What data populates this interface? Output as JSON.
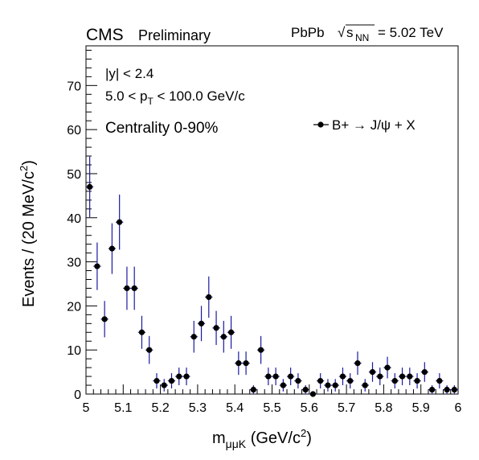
{
  "header": {
    "experiment": "CMS",
    "status": "Preliminary",
    "collision": "PbPb",
    "sqrt_symbol": "√",
    "energy_var": "s",
    "energy_sub": "NN",
    "energy_value": "= 5.02 TeV"
  },
  "annotations": {
    "rapidity_cut": "|y| < 2.4",
    "pt_cut_prefix": "5.0 < p",
    "pt_cut_sub": "T",
    "pt_cut_suffix": " < 100.0 GeV/c",
    "centrality": "Centrality 0-90%"
  },
  "legend": {
    "label": "B+ → J/ψ + X",
    "position": "top-right"
  },
  "colors": {
    "marker": "#000000",
    "error_bar": "#1a1aa0",
    "axis": "#000000"
  },
  "chart_data": {
    "type": "scatter",
    "xlabel_main": "m",
    "xlabel_sub": "μμK",
    "xlabel_unit": " (GeV/c",
    "xlabel_sup": "2",
    "xlabel_close": ")",
    "ylabel": "Events / (20 MeV/c",
    "ylabel_sup": "2",
    "ylabel_close": ")",
    "xlim": [
      5.0,
      6.0
    ],
    "ylim": [
      0,
      79
    ],
    "x_ticks": [
      5,
      5.1,
      5.2,
      5.3,
      5.4,
      5.5,
      5.6,
      5.7,
      5.8,
      5.9,
      6
    ],
    "x_tick_labels": [
      "5",
      "5.1",
      "5.2",
      "5.3",
      "5.4",
      "5.5",
      "5.6",
      "5.7",
      "5.8",
      "5.9",
      "6"
    ],
    "y_ticks": [
      0,
      10,
      20,
      30,
      40,
      50,
      60,
      70
    ],
    "y_tick_labels": [
      "0",
      "10",
      "20",
      "30",
      "40",
      "50",
      "60",
      "70"
    ],
    "grid": false,
    "series": [
      {
        "name": "B+ → J/ψ + X",
        "x": [
          5.01,
          5.03,
          5.05,
          5.07,
          5.09,
          5.11,
          5.13,
          5.15,
          5.17,
          5.19,
          5.21,
          5.23,
          5.25,
          5.27,
          5.29,
          5.31,
          5.33,
          5.35,
          5.37,
          5.39,
          5.41,
          5.43,
          5.45,
          5.47,
          5.49,
          5.51,
          5.53,
          5.55,
          5.57,
          5.59,
          5.61,
          5.63,
          5.65,
          5.67,
          5.69,
          5.71,
          5.73,
          5.75,
          5.77,
          5.79,
          5.81,
          5.83,
          5.85,
          5.87,
          5.89,
          5.91,
          5.93,
          5.95,
          5.97,
          5.99
        ],
        "y": [
          47,
          29,
          17,
          33,
          39,
          24,
          24,
          14,
          10,
          3,
          2,
          3,
          4,
          4,
          13,
          16,
          22,
          15,
          13,
          14,
          7,
          7,
          1,
          10,
          4,
          4,
          2,
          4,
          3,
          1,
          0,
          3,
          2,
          2,
          4,
          3,
          7,
          2,
          5,
          4,
          6,
          3,
          4,
          4,
          3,
          5,
          1,
          3,
          1,
          1
        ]
      }
    ]
  }
}
